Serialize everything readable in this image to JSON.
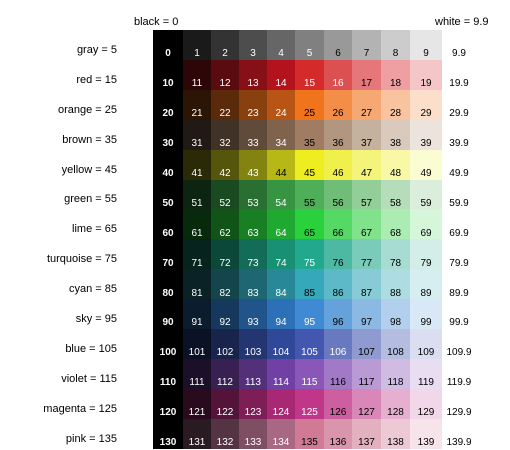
{
  "header": {
    "black_label": "black = 0",
    "white_label": "white = 9.9"
  },
  "chart_data": {
    "type": "table",
    "title": "",
    "rows": [
      {
        "label": "gray = 5",
        "values": [
          "0",
          "1",
          "2",
          "3",
          "4",
          "5",
          "6",
          "7",
          "8",
          "9",
          "9.9"
        ],
        "colors": [
          "#000000",
          "#1a1a1a",
          "#333333",
          "#4d4d4d",
          "#666666",
          "#808080",
          "#999999",
          "#b3b3b3",
          "#cccccc",
          "#e6e6e6",
          "#ffffff"
        ]
      },
      {
        "label": "red = 15",
        "values": [
          "10",
          "11",
          "12",
          "13",
          "14",
          "15",
          "16",
          "17",
          "18",
          "19",
          "19.9"
        ],
        "colors": [
          "#000000",
          "#2d0608",
          "#5a0b0f",
          "#870f16",
          "#b4121d",
          "#d42a2a",
          "#dc5052",
          "#e5777a",
          "#ef9ea1",
          "#f5c6c7",
          "#ffffff"
        ]
      },
      {
        "label": "orange = 25",
        "values": [
          "20",
          "21",
          "22",
          "23",
          "24",
          "25",
          "26",
          "27",
          "28",
          "29",
          "29.9"
        ],
        "colors": [
          "#000000",
          "#2d1505",
          "#5a2a0a",
          "#87400e",
          "#b85414",
          "#f0741c",
          "#f38d47",
          "#f6a872",
          "#f9c39f",
          "#fcdfca",
          "#ffffff"
        ]
      },
      {
        "label": "brown = 35",
        "values": [
          "30",
          "31",
          "32",
          "33",
          "34",
          "35",
          "36",
          "37",
          "38",
          "39",
          "39.9"
        ],
        "colors": [
          "#000000",
          "#211913",
          "#403227",
          "#604a3a",
          "#80634d",
          "#9f7c62",
          "#b39680",
          "#c6b09e",
          "#d9cabd",
          "#ece4dc",
          "#ffffff"
        ]
      },
      {
        "label": "yellow = 45",
        "values": [
          "40",
          "41",
          "42",
          "43",
          "44",
          "45",
          "46",
          "47",
          "48",
          "49",
          "49.9"
        ],
        "colors": [
          "#000000",
          "#2a2a06",
          "#55550c",
          "#838312",
          "#b7b716",
          "#eded20",
          "#f0f04d",
          "#f4f47a",
          "#f8f8a6",
          "#fcfcd2",
          "#ffffff"
        ]
      },
      {
        "label": "green = 55",
        "values": [
          "50",
          "51",
          "52",
          "53",
          "54",
          "55",
          "56",
          "57",
          "58",
          "59",
          "59.9"
        ],
        "colors": [
          "#000000",
          "#0d2510",
          "#1a4a20",
          "#296f31",
          "#379442",
          "#4fae58",
          "#70bd77",
          "#93cd98",
          "#b6ddb9",
          "#dbeedc",
          "#ffffff"
        ]
      },
      {
        "label": "lime = 65",
        "values": [
          "60",
          "61",
          "62",
          "63",
          "64",
          "65",
          "66",
          "67",
          "68",
          "69",
          "69.9"
        ],
        "colors": [
          "#000000",
          "#082a0c",
          "#105418",
          "#187f24",
          "#1fa930",
          "#2bd03d",
          "#55d964",
          "#80e38b",
          "#aaecb2",
          "#d5f6d8",
          "#ffffff"
        ]
      },
      {
        "label": "turquoise = 75",
        "values": [
          "70",
          "71",
          "72",
          "73",
          "74",
          "75",
          "76",
          "77",
          "78",
          "79",
          "79.9"
        ],
        "colors": [
          "#000000",
          "#06241d",
          "#0c483a",
          "#126c57",
          "#189074",
          "#22a88c",
          "#4eb9a3",
          "#7acbba",
          "#a6dcd1",
          "#d3eee8",
          "#ffffff"
        ]
      },
      {
        "label": "cyan = 85",
        "values": [
          "80",
          "81",
          "82",
          "83",
          "84",
          "85",
          "86",
          "87",
          "88",
          "89",
          "89.9"
        ],
        "colors": [
          "#000000",
          "#0a2226",
          "#14444c",
          "#1e6672",
          "#288898",
          "#35a8b9",
          "#5db9c7",
          "#86cbd5",
          "#aedce3",
          "#d7eef1",
          "#ffffff"
        ]
      },
      {
        "label": "sky = 95",
        "values": [
          "90",
          "91",
          "92",
          "93",
          "94",
          "95",
          "96",
          "97",
          "98",
          "99",
          "99.9"
        ],
        "colors": [
          "#000000",
          "#0b1c2e",
          "#16385c",
          "#21548a",
          "#2c70b8",
          "#3f8ad2",
          "#65a1db",
          "#8cb9e4",
          "#b2d0ed",
          "#d9e8f6",
          "#ffffff"
        ]
      },
      {
        "label": "blue = 105",
        "values": [
          "100",
          "101",
          "102",
          "103",
          "104",
          "105",
          "106",
          "107",
          "108",
          "109",
          "109.9"
        ],
        "colors": [
          "#000000",
          "#0c1226",
          "#18244c",
          "#243672",
          "#304898",
          "#4457b0",
          "#6979c0",
          "#8f9ad0",
          "#b4bce0",
          "#dadef0",
          "#ffffff"
        ]
      },
      {
        "label": "violet = 115",
        "values": [
          "110",
          "111",
          "112",
          "113",
          "114",
          "115",
          "116",
          "117",
          "118",
          "119",
          "119.9"
        ],
        "colors": [
          "#000000",
          "#1c1029",
          "#382052",
          "#54307b",
          "#7040a4",
          "#8a57b8",
          "#a179c6",
          "#b99ad4",
          "#d0bce3",
          "#e8ddf1",
          "#ffffff"
        ]
      },
      {
        "label": "magenta = 125",
        "values": [
          "120",
          "121",
          "122",
          "123",
          "124",
          "125",
          "126",
          "127",
          "128",
          "129",
          "129.9"
        ],
        "colors": [
          "#000000",
          "#2a0a1d",
          "#54143a",
          "#7e1e57",
          "#a82874",
          "#c0378a",
          "#cd5fa1",
          "#d987b9",
          "#e6afd0",
          "#f2d7e8",
          "#ffffff"
        ]
      },
      {
        "label": "pink = 135",
        "values": [
          "130",
          "131",
          "132",
          "133",
          "134",
          "135",
          "136",
          "137",
          "138",
          "139",
          "139.9"
        ],
        "colors": [
          "#000000",
          "#2a1a21",
          "#543442",
          "#7e4e63",
          "#a86884",
          "#d07a96",
          "#d995ab",
          "#e3b0c0",
          "#ecc9d5",
          "#f6e4ea",
          "#ffffff"
        ]
      }
    ]
  }
}
